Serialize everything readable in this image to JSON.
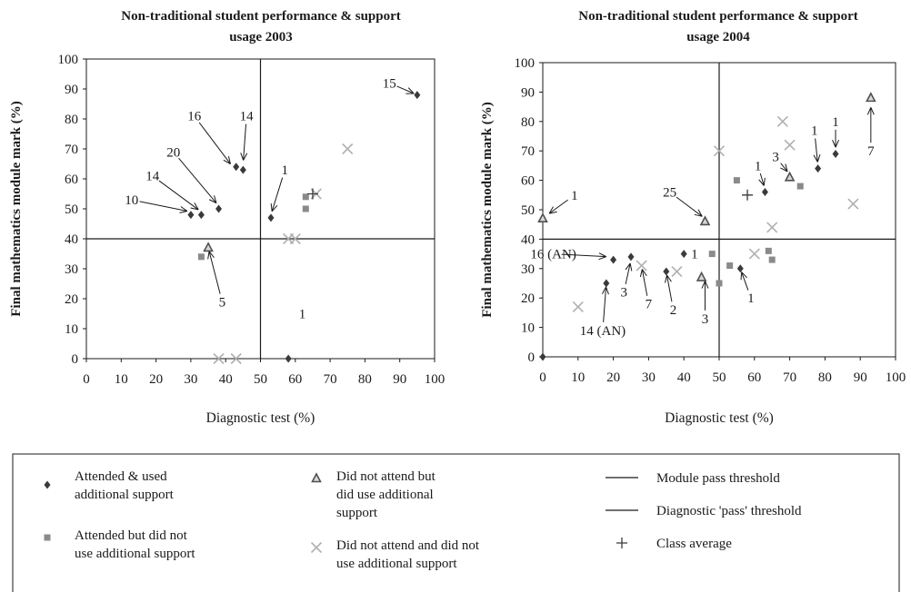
{
  "chart_data": [
    {
      "type": "scatter",
      "title": [
        "Non-traditional student performance & support",
        "usage 2003"
      ],
      "xlabel": "Diagnostic test (%)",
      "ylabel": "Final mathematics module mark (%)",
      "xlim": [
        0,
        100
      ],
      "ylim": [
        0,
        100
      ],
      "xticks": [
        0,
        10,
        20,
        30,
        40,
        50,
        60,
        70,
        80,
        90,
        100
      ],
      "yticks": [
        0,
        10,
        20,
        30,
        40,
        50,
        60,
        70,
        80,
        90,
        100
      ],
      "grid": false,
      "thresholds": {
        "module_pass": 40,
        "diagnostic_pass": 50
      },
      "series": [
        {
          "key": "attended_used",
          "points": [
            [
              30,
              48
            ],
            [
              33,
              48
            ],
            [
              38,
              50
            ],
            [
              43,
              64
            ],
            [
              45,
              63
            ],
            [
              53,
              47
            ],
            [
              95,
              88
            ],
            [
              58,
              0
            ]
          ]
        },
        {
          "key": "attended_not_used",
          "points": [
            [
              33,
              34
            ],
            [
              63,
              54
            ],
            [
              63,
              50
            ]
          ]
        },
        {
          "key": "not_attend_used",
          "points": [
            [
              35,
              37
            ]
          ]
        },
        {
          "key": "not_attend_not_used",
          "points": [
            [
              58,
              40
            ],
            [
              60,
              40
            ],
            [
              66,
              55
            ],
            [
              75,
              70
            ],
            [
              38,
              0
            ],
            [
              43,
              0
            ]
          ]
        },
        {
          "key": "class_average",
          "points": [
            [
              65,
              55
            ]
          ]
        }
      ],
      "annotations": [
        {
          "text": "15",
          "tx": 87,
          "ty": 92,
          "ax": 95,
          "ay": 88
        },
        {
          "text": "16",
          "tx": 31,
          "ty": 81,
          "ax": 42,
          "ay": 64
        },
        {
          "text": "14",
          "tx": 46,
          "ty": 81,
          "ax": 45,
          "ay": 65
        },
        {
          "text": "20",
          "tx": 25,
          "ty": 69,
          "ax": 38,
          "ay": 51
        },
        {
          "text": "14",
          "tx": 19,
          "ty": 61,
          "ax": 33,
          "ay": 49
        },
        {
          "text": "10",
          "tx": 13,
          "ty": 53,
          "ax": 30,
          "ay": 49
        },
        {
          "text": "1",
          "tx": 57,
          "ty": 63,
          "ax": 53,
          "ay": 48
        },
        {
          "text": "5",
          "tx": 39,
          "ty": 19,
          "ax": 35,
          "ay": 37
        },
        {
          "text": "1",
          "tx": 62,
          "ty": 15,
          "ax": null,
          "ay": null
        }
      ]
    },
    {
      "type": "scatter",
      "title": [
        "Non-traditional student performance & support",
        "usage 2004"
      ],
      "xlabel": "Diagnostic test (%)",
      "ylabel": "Final mathematics module mark (%)",
      "xlim": [
        0,
        100
      ],
      "ylim": [
        0,
        100
      ],
      "xticks": [
        0,
        10,
        20,
        30,
        40,
        50,
        60,
        70,
        80,
        90,
        100
      ],
      "yticks": [
        0,
        10,
        20,
        30,
        40,
        50,
        60,
        70,
        80,
        90,
        100
      ],
      "grid": false,
      "thresholds": {
        "module_pass": 40,
        "diagnostic_pass": 50
      },
      "series": [
        {
          "key": "attended_used",
          "points": [
            [
              20,
              33
            ],
            [
              25,
              34
            ],
            [
              18,
              25
            ],
            [
              35,
              29
            ],
            [
              40,
              35
            ],
            [
              56,
              30
            ],
            [
              63,
              56
            ],
            [
              78,
              64
            ],
            [
              83,
              69
            ],
            [
              0,
              0
            ]
          ]
        },
        {
          "key": "attended_not_used",
          "points": [
            [
              48,
              35
            ],
            [
              50,
              25
            ],
            [
              53,
              31
            ],
            [
              55,
              60
            ],
            [
              64,
              36
            ],
            [
              65,
              33
            ],
            [
              73,
              58
            ]
          ]
        },
        {
          "key": "not_attend_used",
          "points": [
            [
              0,
              47
            ],
            [
              46,
              46
            ],
            [
              45,
              27
            ],
            [
              70,
              61
            ],
            [
              93,
              88
            ]
          ]
        },
        {
          "key": "not_attend_not_used",
          "points": [
            [
              10,
              17
            ],
            [
              28,
              31
            ],
            [
              38,
              29
            ],
            [
              50,
              70
            ],
            [
              60,
              35
            ],
            [
              65,
              44
            ],
            [
              68,
              80
            ],
            [
              70,
              72
            ],
            [
              88,
              52
            ]
          ]
        },
        {
          "key": "class_average",
          "points": [
            [
              58,
              55
            ]
          ]
        }
      ],
      "annotations": [
        {
          "text": "1",
          "tx": 9,
          "ty": 55,
          "ax": 1,
          "ay": 48
        },
        {
          "text": "25",
          "tx": 36,
          "ty": 56,
          "ax": 46,
          "ay": 47
        },
        {
          "text": "1",
          "tx": 61,
          "ty": 65,
          "ax": 63,
          "ay": 57
        },
        {
          "text": "3",
          "tx": 66,
          "ty": 68,
          "ax": 70,
          "ay": 62
        },
        {
          "text": "1",
          "tx": 77,
          "ty": 77,
          "ax": 78,
          "ay": 65
        },
        {
          "text": "1",
          "tx": 83,
          "ty": 80,
          "ax": 83,
          "ay": 70
        },
        {
          "text": "7",
          "tx": 93,
          "ty": 70,
          "ax": 93,
          "ay": 86
        },
        {
          "text": "16 (AN)",
          "tx": 3,
          "ty": 35,
          "ax": 19,
          "ay": 34
        },
        {
          "text": "3",
          "tx": 23,
          "ty": 22,
          "ax": 25,
          "ay": 33
        },
        {
          "text": "7",
          "tx": 30,
          "ty": 18,
          "ax": 28,
          "ay": 31
        },
        {
          "text": "2",
          "tx": 37,
          "ty": 16,
          "ax": 35,
          "ay": 29
        },
        {
          "text": "3",
          "tx": 46,
          "ty": 13,
          "ax": 46,
          "ay": 27
        },
        {
          "text": "1",
          "tx": 59,
          "ty": 20,
          "ax": 56,
          "ay": 30
        },
        {
          "text": "1",
          "tx": 43,
          "ty": 35,
          "ax": null,
          "ay": null
        },
        {
          "text": "14 (AN)",
          "tx": 17,
          "ty": 9,
          "ax": 18,
          "ay": 25
        }
      ]
    }
  ],
  "legend": {
    "attended_used": "Attended & used\nadditional support",
    "attended_not_used": "Attended but did not\nuse additional support",
    "not_attend_used": "Did not attend but\ndid use additional\nsupport",
    "not_attend_not_used": "Did not attend and did not\nuse additional support",
    "module_pass": "Module pass threshold",
    "diagnostic_pass": "Diagnostic 'pass' threshold",
    "class_average": "Class average"
  },
  "colors": {
    "attended_used": "#3a3a3a",
    "attended_not_used": "#8a8a8a",
    "not_attend_used": "#505050",
    "not_attend_not_used": "#b0b0b0",
    "class_average": "#3a3a3a",
    "axes": "#1a1a1a"
  }
}
